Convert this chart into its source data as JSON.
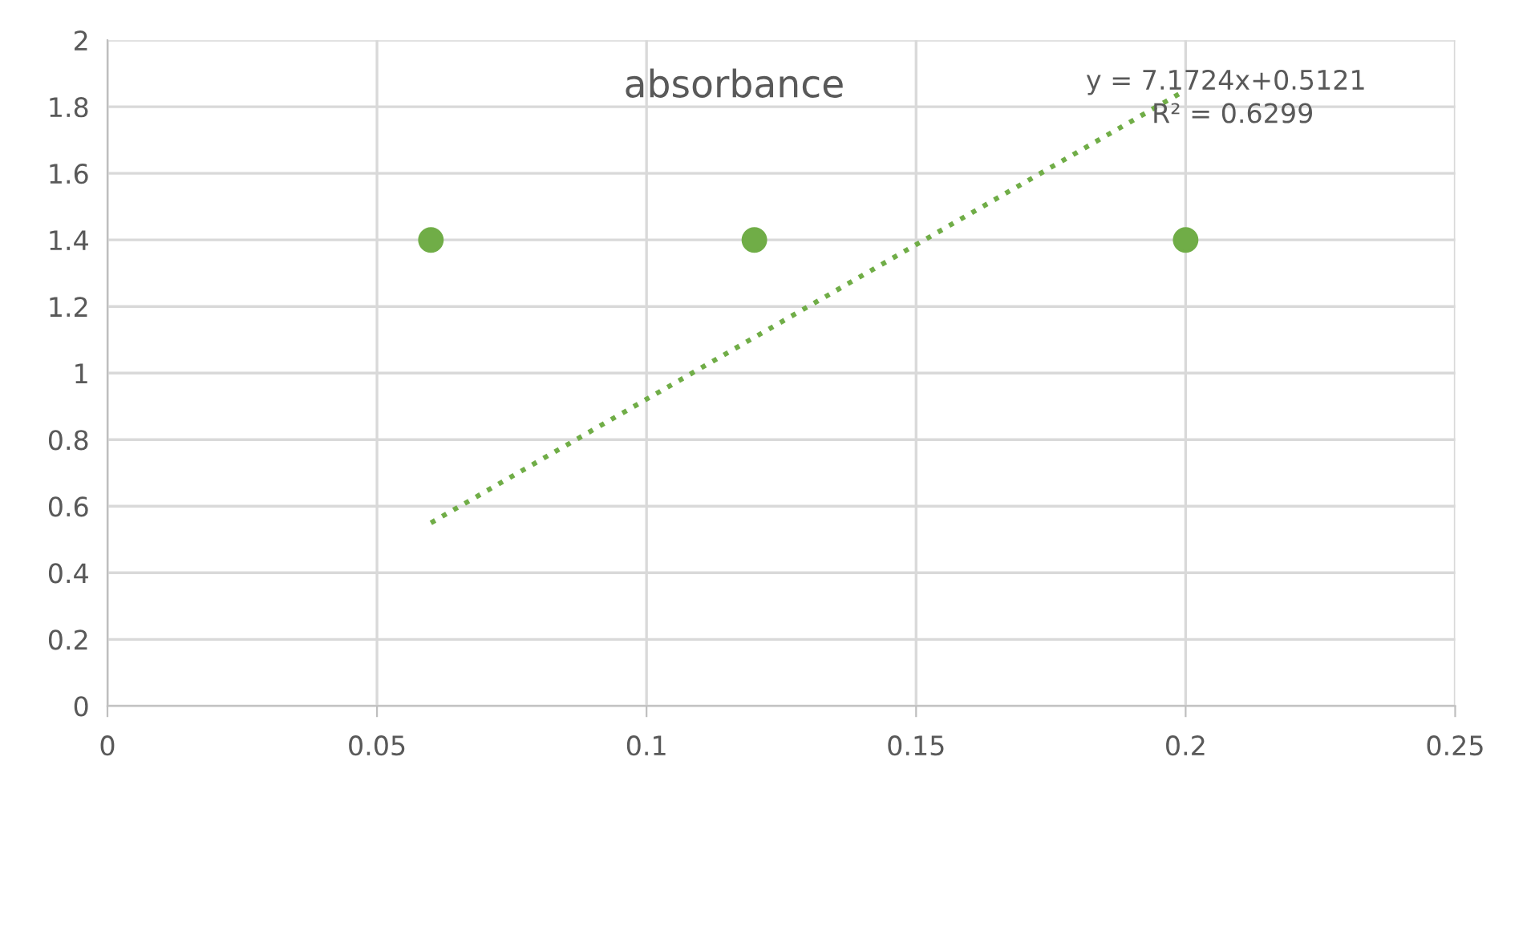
{
  "chart_data": {
    "type": "scatter",
    "title": "absorbance",
    "series": [
      {
        "color": "#70ad47",
        "x": [
          0.06,
          0.12,
          0.2
        ],
        "values": [
          1.4,
          1.4,
          1.4
        ],
        "marker": "circle"
      },
      {
        "type": "line",
        "color": "#70ad47",
        "x": [
          0.06,
          0.2
        ],
        "values": [
          0.55,
          1.85
        ],
        "line_style": "dotted",
        "marker": "none"
      }
    ],
    "annotations": [
      "y = 7.1724x+0.5121",
      "R² = 0.6299"
    ],
    "xlim": [
      0,
      0.25
    ],
    "xticks": [
      0,
      0.05,
      0.1,
      0.15,
      0.2,
      0.25
    ],
    "ylim": [
      0,
      2
    ],
    "yticks": [
      0,
      0.2,
      0.4,
      0.6,
      0.8,
      1,
      1.2,
      1.4,
      1.6,
      1.8,
      2
    ],
    "grid": true,
    "legend": false
  }
}
